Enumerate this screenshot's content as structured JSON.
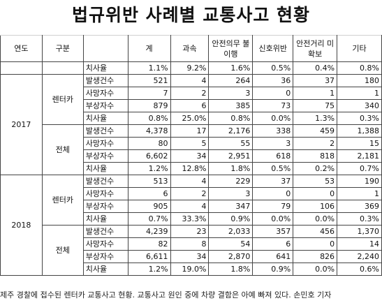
{
  "title": "법규위반 사례별 교통사고 현황",
  "headers": {
    "year": "연도",
    "group": "구분",
    "blank": "",
    "cols": [
      "계",
      "과속",
      "안전의무 불이행",
      "신호위반",
      "안전거리 미확보",
      "기타"
    ]
  },
  "top_row": {
    "label": "치사율",
    "values": [
      "1.1%",
      "9.2%",
      "1.6%",
      "0.5%",
      "0.4%",
      "0.8%"
    ]
  },
  "years": [
    {
      "year": "2017",
      "groups": [
        {
          "name": "렌터카",
          "rows": [
            {
              "label": "발생건수",
              "values": [
                "521",
                "4",
                "264",
                "36",
                "37",
                "180"
              ]
            },
            {
              "label": "사망자수",
              "values": [
                "7",
                "2",
                "3",
                "0",
                "1",
                "1"
              ]
            },
            {
              "label": "부상자수",
              "values": [
                "879",
                "6",
                "385",
                "73",
                "75",
                "340"
              ]
            },
            {
              "label": "치사율",
              "values": [
                "0.8%",
                "25.0%",
                "0.8%",
                "0.0%",
                "1.3%",
                "0.3%"
              ]
            }
          ]
        },
        {
          "name": "전체",
          "rows": [
            {
              "label": "발생건수",
              "values": [
                "4,378",
                "17",
                "2,176",
                "338",
                "459",
                "1,388"
              ]
            },
            {
              "label": "사망자수",
              "values": [
                "80",
                "5",
                "55",
                "3",
                "2",
                "15"
              ]
            },
            {
              "label": "부상자수",
              "values": [
                "6,602",
                "34",
                "2,951",
                "618",
                "818",
                "2,181"
              ]
            },
            {
              "label": "치사율",
              "values": [
                "1.2%",
                "12.8%",
                "1.8%",
                "0.5%",
                "0.2%",
                "0.7%"
              ]
            }
          ]
        }
      ]
    },
    {
      "year": "2018",
      "groups": [
        {
          "name": "렌터카",
          "rows": [
            {
              "label": "발생건수",
              "values": [
                "513",
                "4",
                "229",
                "37",
                "53",
                "190"
              ]
            },
            {
              "label": "사망자수",
              "values": [
                "6",
                "2",
                "3",
                "0",
                "0",
                "1"
              ]
            },
            {
              "label": "부상자수",
              "values": [
                "905",
                "4",
                "347",
                "79",
                "106",
                "369"
              ]
            },
            {
              "label": "치사율",
              "values": [
                "0.7%",
                "33.3%",
                "0.9%",
                "0.0%",
                "0.0%",
                "0.3%"
              ]
            }
          ]
        },
        {
          "name": "전체",
          "rows": [
            {
              "label": "발생건수",
              "values": [
                "4,239",
                "23",
                "2,033",
                "357",
                "456",
                "1,370"
              ]
            },
            {
              "label": "사망자수",
              "values": [
                "82",
                "8",
                "54",
                "6",
                "0",
                "14"
              ]
            },
            {
              "label": "부상자수",
              "values": [
                "6,611",
                "34",
                "2,870",
                "641",
                "826",
                "2,240"
              ]
            },
            {
              "label": "치사율",
              "values": [
                "1.2%",
                "19.0%",
                "1.8%",
                "0.9%",
                "0.0%",
                "0.6%"
              ]
            }
          ]
        }
      ]
    }
  ],
  "caption": "제주 경찰에 접수된 렌터카 교통사고 현황. 교통사고 원인 중에 차량 결함은 아예 빠져 있다. 손민호 기자"
}
